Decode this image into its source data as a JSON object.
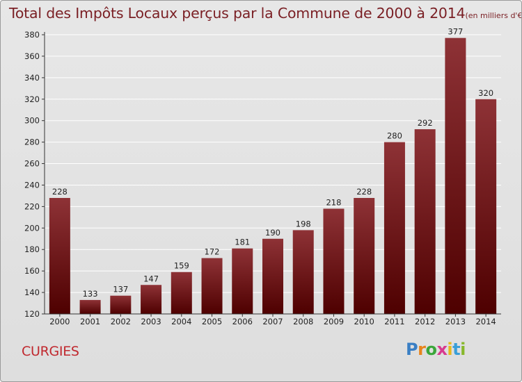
{
  "title": {
    "main": "Total des Impôts Locaux perçus par la Commune de 2000 à 2014",
    "unit": "(en milliers d'€)"
  },
  "commune": "CURGIES",
  "brand": {
    "letters": [
      "P",
      "r",
      "o",
      "x",
      "i",
      "t",
      "i"
    ],
    "colors": [
      "#3a7fc4",
      "#e8841c",
      "#3aa63a",
      "#d83a8f",
      "#e8b81c",
      "#3a9fd8",
      "#88b82c"
    ]
  },
  "colors": {
    "bar_top": "#8e3236",
    "bar_bottom": "#4e0000",
    "axis": "#333333",
    "grid": "#ffffff",
    "label": "#222222"
  },
  "chart_data": {
    "type": "bar",
    "title": "Total des Impôts Locaux perçus par la Commune de 2000 à 2014",
    "xlabel": "",
    "ylabel": "",
    "categories": [
      "2000",
      "2001",
      "2002",
      "2003",
      "2004",
      "2005",
      "2006",
      "2007",
      "2008",
      "2009",
      "2010",
      "2011",
      "2012",
      "2013",
      "2014"
    ],
    "values": [
      228,
      133,
      137,
      147,
      159,
      172,
      181,
      190,
      198,
      218,
      228,
      280,
      292,
      377,
      320
    ],
    "ylim": [
      120,
      380
    ],
    "yticks": [
      120,
      140,
      160,
      180,
      200,
      220,
      240,
      260,
      280,
      300,
      320,
      340,
      360,
      380
    ],
    "grid": true
  }
}
